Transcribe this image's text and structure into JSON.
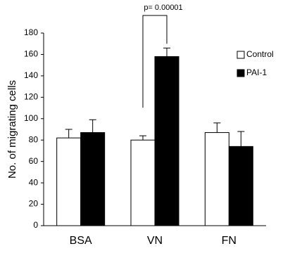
{
  "chart_data": {
    "type": "bar",
    "y_label": "No. of migrating cells",
    "categories": [
      "BSA",
      "VN",
      "FN"
    ],
    "series": [
      {
        "name": "Control",
        "color": "#ffffff",
        "values": [
          82,
          80,
          87
        ],
        "errors": [
          8,
          4,
          9
        ]
      },
      {
        "name": "PAI-1",
        "color": "#000000",
        "values": [
          87,
          158,
          74
        ],
        "errors": [
          12,
          8,
          14
        ]
      }
    ],
    "ylim": [
      0,
      180
    ],
    "yticks": [
      0,
      20,
      40,
      60,
      80,
      100,
      120,
      140,
      160,
      180
    ],
    "annotation": "p= 0.00001",
    "legend": "upper right"
  }
}
